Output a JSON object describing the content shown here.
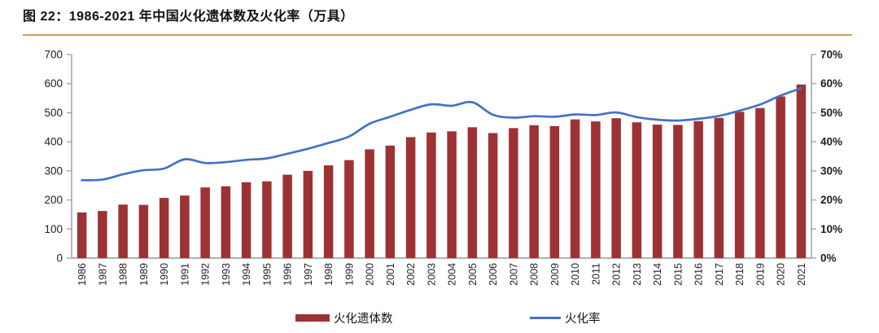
{
  "figure": {
    "title": "图 22：1986-2021 年中国火化遗体数及火化率（万具）"
  },
  "colors": {
    "bar": "#9d3235",
    "line": "#4472c4",
    "axis": "#a6a6a6",
    "tick_text": "#1f1f1f",
    "title_rule": "#d49d55"
  },
  "chart_data": {
    "type": "bar+line combo",
    "title": "图 22：1986-2021 年中国火化遗体数及火化率（万具）",
    "categories": [
      "1986",
      "1987",
      "1988",
      "1989",
      "1990",
      "1991",
      "1992",
      "1993",
      "1994",
      "1995",
      "1996",
      "1997",
      "1998",
      "1999",
      "2000",
      "2001",
      "2002",
      "2003",
      "2004",
      "2005",
      "2006",
      "2007",
      "2008",
      "2009",
      "2010",
      "2011",
      "2012",
      "2013",
      "2014",
      "2015",
      "2016",
      "2017",
      "2018",
      "2019",
      "2020",
      "2021"
    ],
    "series": [
      {
        "name": "火化遗体数",
        "type": "bar",
        "axis": "left",
        "color": "#9d3235",
        "values": [
          157,
          162,
          184,
          183,
          207,
          215,
          243,
          247,
          261,
          264,
          287,
          300,
          319,
          337,
          374,
          387,
          416,
          432,
          436,
          450,
          430,
          447,
          457,
          454,
          477,
          470,
          481,
          467,
          459,
          458,
          471,
          482,
          503,
          516,
          556,
          597
        ]
      },
      {
        "name": "火化率",
        "type": "line",
        "axis": "right",
        "color": "#4472c4",
        "values": [
          26.8,
          27.0,
          28.8,
          30.2,
          30.8,
          34.0,
          32.7,
          33.0,
          33.8,
          34.3,
          35.9,
          37.6,
          39.6,
          41.8,
          46.2,
          48.6,
          51.0,
          52.9,
          52.4,
          53.6,
          49.3,
          48.3,
          48.8,
          48.6,
          49.4,
          49.2,
          50.1,
          48.5,
          47.6,
          47.3,
          47.9,
          48.9,
          50.7,
          52.8,
          55.9,
          58.4
        ]
      }
    ],
    "left_axis": {
      "min": 0,
      "max": 700,
      "step": 100,
      "tick_labels": [
        "0",
        "100",
        "200",
        "300",
        "400",
        "500",
        "600",
        "700"
      ]
    },
    "right_axis": {
      "min": 0,
      "max": 70,
      "step": 10,
      "tick_labels": [
        "0%",
        "10%",
        "20%",
        "30%",
        "40%",
        "50%",
        "60%",
        "70%"
      ]
    },
    "legend_position": "bottom",
    "grid": false
  }
}
